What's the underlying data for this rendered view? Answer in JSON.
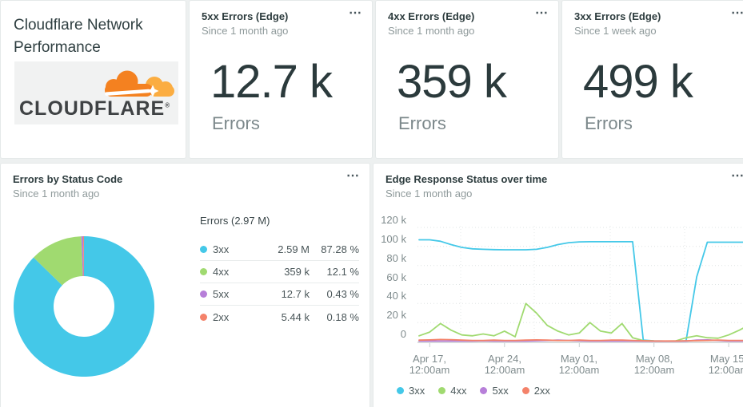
{
  "ui": {
    "menu_glyph": "⋯"
  },
  "title_card": {
    "title": "Cloudflare Network Performance",
    "logo_wordmark": "CLOUDFLARE",
    "logo_reg": "®",
    "logo_orange": "#f48120",
    "logo_gold": "#fbad41"
  },
  "billboards": [
    {
      "title": "5xx Errors (Edge)",
      "subtitle": "Since 1 month ago",
      "value": "12.7 k",
      "unit_label": "Errors"
    },
    {
      "title": "4xx Errors (Edge)",
      "subtitle": "Since 1 month ago",
      "value": "359 k",
      "unit_label": "Errors"
    },
    {
      "title": "3xx Errors (Edge)",
      "subtitle": "Since 1 week ago",
      "value": "499 k",
      "unit_label": "Errors"
    }
  ],
  "pie_card": {
    "title": "Errors by Status Code",
    "subtitle": "Since 1 month ago",
    "table_header": "Errors (2.97 M)"
  },
  "line_card": {
    "title": "Edge Response Status over time",
    "subtitle": "Since 1 month ago",
    "y_tick_labels": [
      "120 k",
      "100 k",
      "80 k",
      "60 k",
      "40 k",
      "20 k",
      "0"
    ],
    "x_ticks": [
      {
        "l1": "Apr 17,",
        "l2": "12:00am"
      },
      {
        "l1": "Apr 24,",
        "l2": "12:00am"
      },
      {
        "l1": "May 01,",
        "l2": "12:00am"
      },
      {
        "l1": "May 08,",
        "l2": "12:00am"
      },
      {
        "l1": "May 15,",
        "l2": "12:00am"
      }
    ]
  },
  "chart_data": [
    {
      "type": "pie",
      "title": "Errors by Status Code",
      "total_label": "Errors (2.97 M)",
      "labels": [
        "3xx",
        "4xx",
        "5xx",
        "2xx"
      ],
      "values": [
        2590000,
        359000,
        12700,
        5440
      ],
      "values_display": [
        "2.59 M",
        "359 k",
        "12.7 k",
        "5.44 k"
      ],
      "percents": [
        87.28,
        12.1,
        0.43,
        0.18
      ],
      "percents_display": [
        "87.28 %",
        "12.1 %",
        "0.43 %",
        "0.18 %"
      ],
      "colors": [
        "#44c8e8",
        "#a0da70",
        "#b77fd9",
        "#f4826a"
      ],
      "donut_hole_ratio": 0.43,
      "legend_position": "right-table"
    },
    {
      "type": "line",
      "title": "Edge Response Status over time",
      "unit": "thousands",
      "ylim": [
        0,
        120
      ],
      "y_ticks": [
        120,
        100,
        80,
        60,
        40,
        20,
        0
      ],
      "grid": "dotted",
      "x": [
        "Apr 16",
        "Apr 17",
        "Apr 18",
        "Apr 19",
        "Apr 20",
        "Apr 21",
        "Apr 22",
        "Apr 23",
        "Apr 24",
        "Apr 25",
        "Apr 26",
        "Apr 27",
        "Apr 28",
        "Apr 29",
        "Apr 30",
        "May 1",
        "May 2",
        "May 3",
        "May 4",
        "May 5",
        "May 6",
        "May 7",
        "May 8",
        "May 9",
        "May 10",
        "May 11",
        "May 12",
        "May 13",
        "May 14",
        "May 15",
        "May 16",
        "May 17"
      ],
      "x_tick_labels": [
        "Apr 17, 12:00am",
        "Apr 24, 12:00am",
        "May 01, 12:00am",
        "May 08, 12:00am",
        "May 15, 12:00am"
      ],
      "x_tick_indices": [
        1,
        8,
        15,
        22,
        29
      ],
      "legend_position": "bottom",
      "series": [
        {
          "name": "3xx",
          "color": "#44c8e8",
          "values": [
            107,
            107,
            105.5,
            102,
            99,
            97.5,
            97,
            96.7,
            96.5,
            96.5,
            96.5,
            97,
            99,
            102,
            104,
            104.8,
            105,
            105,
            105,
            105,
            105,
            1.5,
            0.7,
            0.5,
            0.5,
            0.7,
            68,
            104.5,
            104.5,
            104.5,
            104.5,
            104.5
          ]
        },
        {
          "name": "4xx",
          "color": "#a0da70",
          "values": [
            6,
            10,
            19,
            12,
            7,
            6,
            8,
            6,
            11,
            5,
            40,
            30,
            17,
            11,
            7,
            9,
            20,
            11,
            9,
            19,
            4,
            1,
            0.6,
            0.5,
            0.6,
            4,
            6,
            4,
            3.5,
            7,
            12,
            18
          ]
        },
        {
          "name": "5xx",
          "color": "#b77fd9",
          "values": [
            0.5,
            0.6,
            0.5,
            0.5,
            0.5,
            0.5,
            0.8,
            0.6,
            0.5,
            0.5,
            0.6,
            0.8,
            1.2,
            1.5,
            1.2,
            0.8,
            0.6,
            0.5,
            0.5,
            0.6,
            0.5,
            0.4,
            0.3,
            0.3,
            0.3,
            0.4,
            1.5,
            1.8,
            1.2,
            0.6,
            0.5,
            0.5
          ]
        },
        {
          "name": "2xx",
          "color": "#f4826a",
          "values": [
            1.5,
            1.8,
            2.2,
            2,
            1.5,
            1.2,
            1.2,
            1.5,
            1.2,
            1.2,
            1.5,
            1.8,
            1.5,
            1.2,
            1.2,
            1.5,
            1.2,
            1.2,
            1.5,
            1.5,
            1.2,
            0.8,
            0.6,
            0.6,
            0.6,
            0.8,
            1,
            1.2,
            1.5,
            1.2,
            1.2,
            1.2
          ]
        }
      ]
    }
  ]
}
